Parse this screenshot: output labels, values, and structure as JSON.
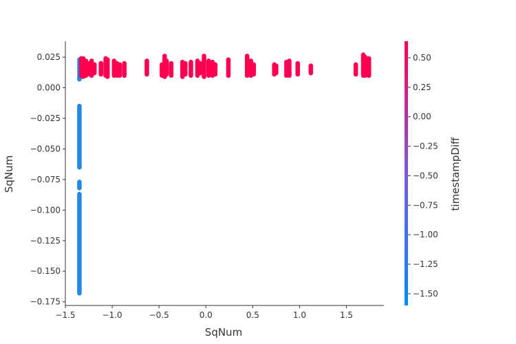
{
  "chart_data": {
    "type": "scatter",
    "xlabel": "SqNum",
    "ylabel": "SqNum",
    "xlim": [
      -1.5,
      1.9
    ],
    "ylim": [
      -0.178,
      0.038
    ],
    "xticks": [
      -1.5,
      -1.0,
      -0.5,
      0.0,
      0.5,
      1.0,
      1.5
    ],
    "xtick_labels": [
      "−1.5",
      "−1.0",
      "−0.5",
      "0.0",
      "0.5",
      "1.0",
      "1.5"
    ],
    "yticks": [
      0.025,
      0.0,
      -0.025,
      -0.05,
      -0.075,
      -0.1,
      -0.125,
      -0.15,
      -0.175
    ],
    "ytick_labels": [
      "0.025",
      "0.000",
      "−0.025",
      "−0.050",
      "−0.075",
      "−0.100",
      "−0.125",
      "−0.150",
      "−0.175"
    ],
    "grid": false,
    "colorbar": {
      "label": "timestampDiff",
      "range": [
        -1.6,
        0.64
      ],
      "ticks": [
        0.5,
        0.25,
        0.0,
        -0.25,
        -0.5,
        -0.75,
        -1.0,
        -1.25,
        -1.5
      ],
      "tick_labels": [
        "0.50",
        "0.25",
        "0.00",
        "−0.25",
        "−0.50",
        "−0.75",
        "−1.00",
        "−1.25",
        "−1.50"
      ],
      "colors": [
        "#008afb",
        "#7a5ae0",
        "#ff0051"
      ]
    },
    "point_groups": [
      {
        "x": -1.35,
        "y_values": [
          0.023,
          0.021,
          0.019,
          0.017,
          0.015,
          0.013,
          0.011,
          0.009,
          0.008,
          0.007
        ],
        "color": "#1e88e5"
      },
      {
        "x": -1.35,
        "y_range": [
          -0.065,
          -0.015
        ],
        "color": "#1e88e5"
      },
      {
        "x": -1.35,
        "y_range": [
          -0.082,
          -0.077
        ],
        "color": "#1e88e5"
      },
      {
        "x": -1.35,
        "y_range": [
          -0.168,
          -0.087
        ],
        "color": "#1e88e5"
      },
      {
        "x": -1.33,
        "y_range": [
          0.01,
          0.024
        ],
        "color": "#ff0051"
      },
      {
        "x": -1.31,
        "y_range": [
          0.009,
          0.024
        ],
        "color": "#ff0051"
      },
      {
        "x": -1.28,
        "y_range": [
          0.01,
          0.022
        ],
        "color": "#ff0051"
      },
      {
        "x": -1.24,
        "y_range": [
          0.011,
          0.02
        ],
        "color": "#ff0051"
      },
      {
        "x": -1.22,
        "y_range": [
          0.01,
          0.022
        ],
        "color": "#ff0051"
      },
      {
        "x": -1.19,
        "y_range": [
          0.012,
          0.019
        ],
        "color": "#ff0051"
      },
      {
        "x": -1.12,
        "y_range": [
          0.011,
          0.02
        ],
        "color": "#ff0051"
      },
      {
        "x": -1.07,
        "y_range": [
          0.01,
          0.024
        ],
        "color": "#ff0051"
      },
      {
        "x": -1.05,
        "y_range": [
          0.009,
          0.023
        ],
        "color": "#ff0051"
      },
      {
        "x": -0.98,
        "y_range": [
          0.01,
          0.022
        ],
        "color": "#ff0051"
      },
      {
        "x": -0.95,
        "y_range": [
          0.01,
          0.02
        ],
        "color": "#ff0051"
      },
      {
        "x": -0.92,
        "y_range": [
          0.01,
          0.019
        ],
        "color": "#ff0051"
      },
      {
        "x": -0.87,
        "y_range": [
          0.01,
          0.02
        ],
        "color": "#ff0051"
      },
      {
        "x": -0.63,
        "y_range": [
          0.011,
          0.022
        ],
        "color": "#ff0051"
      },
      {
        "x": -0.47,
        "y_range": [
          0.01,
          0.019
        ],
        "color": "#ff0051"
      },
      {
        "x": -0.44,
        "y_range": [
          0.009,
          0.026
        ],
        "color": "#ff0051"
      },
      {
        "x": -0.42,
        "y_range": [
          0.011,
          0.022
        ],
        "color": "#ff0051"
      },
      {
        "x": -0.37,
        "y_range": [
          0.01,
          0.02
        ],
        "color": "#ff0051"
      },
      {
        "x": -0.25,
        "y_range": [
          0.009,
          0.021
        ],
        "color": "#ff0051"
      },
      {
        "x": -0.22,
        "y_range": [
          0.011,
          0.02
        ],
        "color": "#ff0051"
      },
      {
        "x": -0.16,
        "y_range": [
          0.01,
          0.021
        ],
        "color": "#ff0051"
      },
      {
        "x": -0.09,
        "y_range": [
          0.01,
          0.022
        ],
        "color": "#ff0051"
      },
      {
        "x": -0.06,
        "y_range": [
          0.012,
          0.02
        ],
        "color": "#ff0051"
      },
      {
        "x": -0.02,
        "y_range": [
          0.009,
          0.026
        ],
        "color": "#ff0051"
      },
      {
        "x": 0.03,
        "y_range": [
          0.01,
          0.022
        ],
        "color": "#ff0051"
      },
      {
        "x": 0.07,
        "y_range": [
          0.01,
          0.021
        ],
        "color": "#ff0051"
      },
      {
        "x": 0.1,
        "y_range": [
          0.011,
          0.019
        ],
        "color": "#ff0051"
      },
      {
        "x": 0.24,
        "y_range": [
          0.01,
          0.023
        ],
        "color": "#ff0051"
      },
      {
        "x": 0.44,
        "y_range": [
          0.01,
          0.026
        ],
        "color": "#ff0051"
      },
      {
        "x": 0.48,
        "y_range": [
          0.01,
          0.022
        ],
        "color": "#ff0051"
      },
      {
        "x": 0.51,
        "y_range": [
          0.011,
          0.019
        ],
        "color": "#ff0051"
      },
      {
        "x": 0.73,
        "y_range": [
          0.011,
          0.019
        ],
        "color": "#ff0051"
      },
      {
        "x": 0.75,
        "y_range": [
          0.012,
          0.018
        ],
        "color": "#ff0051"
      },
      {
        "x": 0.86,
        "y_range": [
          0.01,
          0.021
        ],
        "color": "#ff0051"
      },
      {
        "x": 0.89,
        "y_range": [
          0.01,
          0.022
        ],
        "color": "#ff0051"
      },
      {
        "x": 0.98,
        "y_range": [
          0.011,
          0.02
        ],
        "color": "#ff0051"
      },
      {
        "x": 1.12,
        "y_range": [
          0.012,
          0.018
        ],
        "color": "#ff0051"
      },
      {
        "x": 1.6,
        "y_range": [
          0.011,
          0.019
        ],
        "color": "#ff0051"
      },
      {
        "x": 1.68,
        "y_range": [
          0.01,
          0.027
        ],
        "color": "#ff0051"
      },
      {
        "x": 1.7,
        "y_range": [
          0.01,
          0.025
        ],
        "color": "#ff0051"
      },
      {
        "x": 1.74,
        "y_range": [
          0.01,
          0.024
        ],
        "color": "#ff0051"
      }
    ]
  }
}
